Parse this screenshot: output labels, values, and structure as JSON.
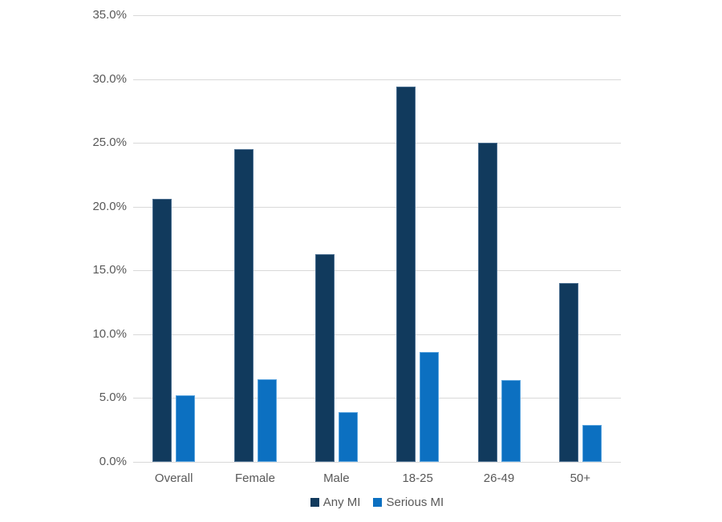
{
  "chart_data": {
    "type": "bar",
    "title": "",
    "xlabel": "",
    "ylabel": "",
    "categories": [
      "Overall",
      "Female",
      "Male",
      "18-25",
      "26-49",
      "50+"
    ],
    "series": [
      {
        "name": "Any MI",
        "color": "#113A5D",
        "border_color": "#4A6E90",
        "values": [
          20.6,
          24.5,
          16.3,
          29.4,
          25.0,
          14.0
        ]
      },
      {
        "name": "Serious MI",
        "color": "#0C70C1",
        "border_color": "#58A3DE",
        "values": [
          5.2,
          6.5,
          3.9,
          8.6,
          6.4,
          2.9
        ]
      }
    ],
    "ylim": [
      0,
      35
    ],
    "ytick_values": [
      0,
      5,
      10,
      15,
      20,
      25,
      30,
      35
    ],
    "ytick_labels": [
      "0.0%",
      "5.0%",
      "10.0%",
      "15.0%",
      "20.0%",
      "25.0%",
      "30.0%",
      "35.0%"
    ],
    "grid": true,
    "legend_position": "bottom",
    "gridline_color": "#D9D9D9",
    "axis_text_color": "#595959",
    "background_color": "#FFFFFF"
  }
}
